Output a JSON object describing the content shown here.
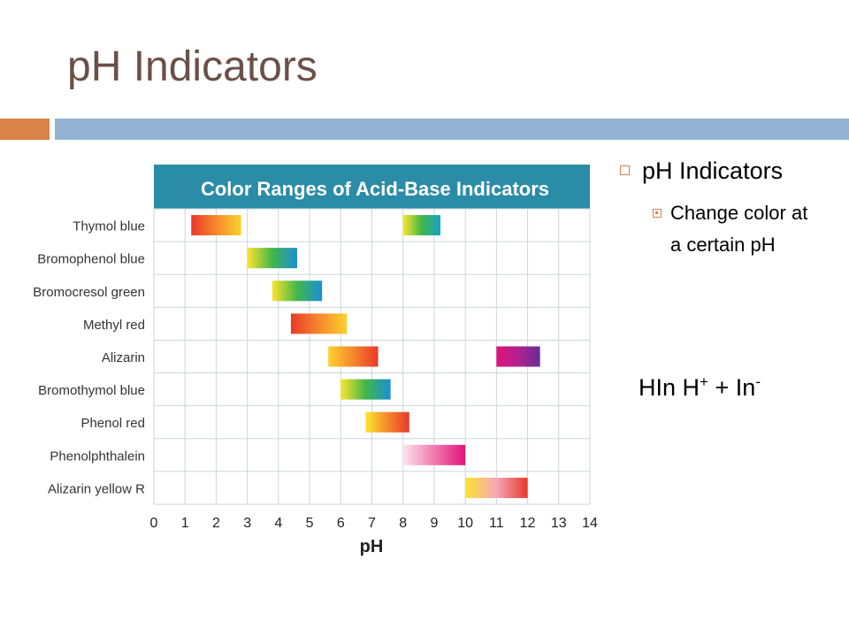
{
  "slide": {
    "title": "pH Indicators",
    "rule_colors": {
      "left": "#d9824a",
      "right": "#94b3d2"
    }
  },
  "bullets": {
    "level1": "pH Indicators",
    "level2": "Change color at a certain pH",
    "bullet_icon": "hollow-square-icon",
    "sub_bullet_icon": "dotted-square-icon",
    "bullet_color": "#d9824a"
  },
  "equation": {
    "left": "HIn",
    "symbol": "",
    "h": "H",
    "h_sup": "+",
    "plus": "+",
    "in": "In",
    "in_sup": "-"
  },
  "chart_data": {
    "type": "bar",
    "title": "Color Ranges of Acid-Base Indicators",
    "xlabel": "pH",
    "ylabel": "",
    "xlim": [
      0,
      14
    ],
    "xticks": [
      "0",
      "1",
      "2",
      "3",
      "4",
      "5",
      "6",
      "7",
      "8",
      "9",
      "10",
      "11",
      "12",
      "13",
      "14"
    ],
    "grid": true,
    "header_color": "#2a8ca6",
    "categories": [
      "Thymol blue",
      "Bromophenol blue",
      "Bromocresol green",
      "Methyl red",
      "Alizarin",
      "Bromothymol blue",
      "Phenol red",
      "Phenolphthalein",
      "Alizarin yellow R"
    ],
    "ranges": [
      {
        "indicator": "Thymol blue",
        "start": 1.2,
        "end": 2.8,
        "colors": [
          "#e8392a",
          "#f5882c",
          "#fbd22e"
        ]
      },
      {
        "indicator": "Thymol blue",
        "start": 8.0,
        "end": 9.2,
        "colors": [
          "#fbe52e",
          "#43b649",
          "#14a3c8"
        ]
      },
      {
        "indicator": "Bromophenol blue",
        "start": 3.0,
        "end": 4.6,
        "colors": [
          "#fbe52e",
          "#43b649",
          "#1a8fd6"
        ]
      },
      {
        "indicator": "Bromocresol green",
        "start": 3.8,
        "end": 5.4,
        "colors": [
          "#fbe52e",
          "#43b649",
          "#1a8fd6"
        ]
      },
      {
        "indicator": "Methyl red",
        "start": 4.4,
        "end": 6.2,
        "colors": [
          "#e8392a",
          "#f5882c",
          "#fbd22e"
        ]
      },
      {
        "indicator": "Alizarin",
        "start": 5.6,
        "end": 7.2,
        "colors": [
          "#fbd22e",
          "#f5882c",
          "#e8392a"
        ]
      },
      {
        "indicator": "Alizarin",
        "start": 11.0,
        "end": 12.4,
        "colors": [
          "#e0147a",
          "#b0208f",
          "#6a2c96"
        ]
      },
      {
        "indicator": "Bromothymol blue",
        "start": 6.0,
        "end": 7.6,
        "colors": [
          "#fbe52e",
          "#43b649",
          "#1a8fd6"
        ]
      },
      {
        "indicator": "Phenol red",
        "start": 6.8,
        "end": 8.2,
        "colors": [
          "#fbe52e",
          "#f5882c",
          "#e8392a"
        ]
      },
      {
        "indicator": "Phenolphthalein",
        "start": 8.0,
        "end": 10.0,
        "colors": [
          "#fde4ec",
          "#f07ab0",
          "#e0147a"
        ]
      },
      {
        "indicator": "Alizarin yellow R",
        "start": 10.0,
        "end": 12.0,
        "colors": [
          "#fbe52e",
          "#f5a6b8",
          "#e8392a"
        ]
      }
    ]
  }
}
